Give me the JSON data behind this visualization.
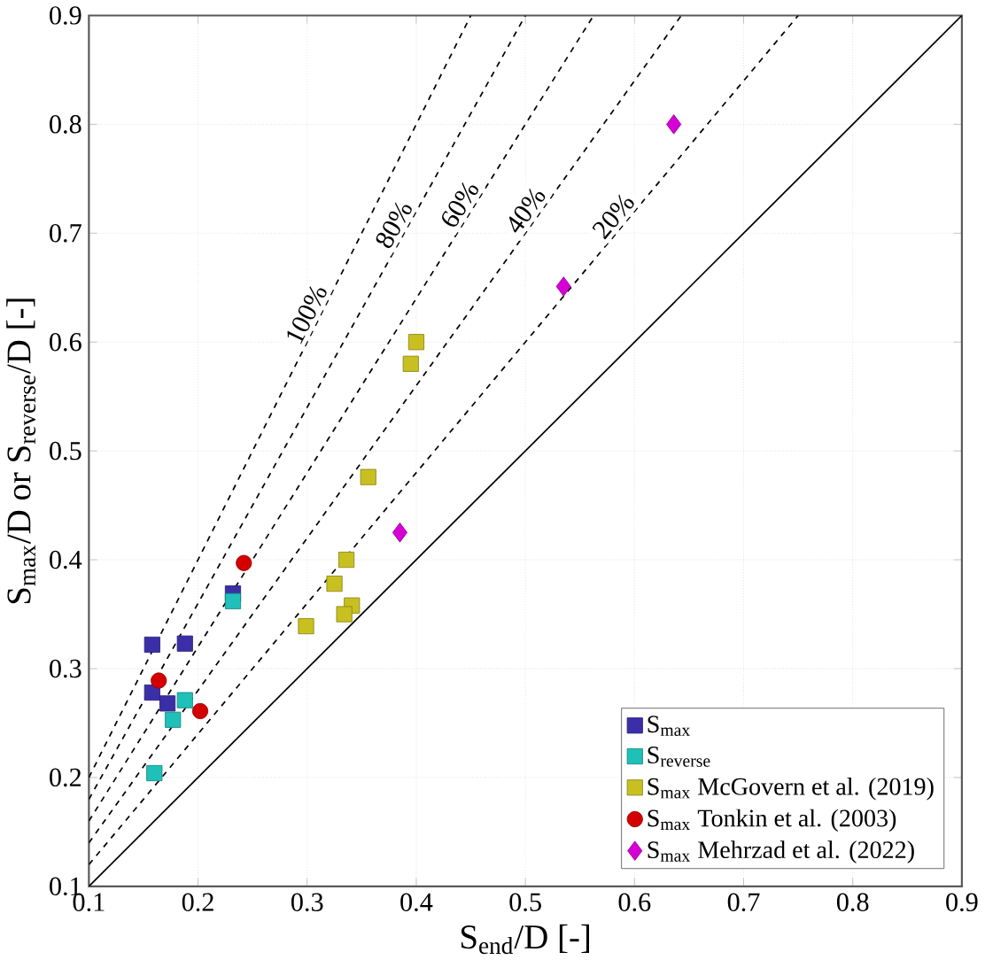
{
  "chart_data": {
    "type": "scatter",
    "xlabel": "S$_{end}$/D [-]",
    "ylabel": "S$_{max}$/D or S$_{reverse}$/D [-]",
    "xlim": [
      0.1,
      0.9
    ],
    "ylim": [
      0.1,
      0.9
    ],
    "xticks": [
      0.1,
      0.2,
      0.3,
      0.4,
      0.5,
      0.6,
      0.7,
      0.8,
      0.9
    ],
    "yticks": [
      0.1,
      0.2,
      0.3,
      0.4,
      0.5,
      0.6,
      0.7,
      0.8,
      0.9
    ],
    "grid": true,
    "legend": "bottom right",
    "series": [
      {
        "type": "line",
        "color": "#000000",
        "line_style": "dashed",
        "marker": "none",
        "x": [
          0.1,
          0.45
        ],
        "values": [
          0.2,
          0.9
        ]
      },
      {
        "type": "line",
        "color": "#000000",
        "line_style": "dashed",
        "marker": "none",
        "x": [
          0.1,
          0.5
        ],
        "values": [
          0.18,
          0.9
        ]
      },
      {
        "type": "line",
        "color": "#000000",
        "line_style": "dashed",
        "marker": "none",
        "x": [
          0.1,
          0.5625
        ],
        "values": [
          0.16,
          0.9
        ]
      },
      {
        "type": "line",
        "color": "#000000",
        "line_style": "dashed",
        "marker": "none",
        "x": [
          0.1,
          0.6429
        ],
        "values": [
          0.14,
          0.9
        ]
      },
      {
        "type": "line",
        "color": "#000000",
        "line_style": "dashed",
        "marker": "none",
        "x": [
          0.1,
          0.75
        ],
        "values": [
          0.12,
          0.9
        ]
      },
      {
        "type": "line",
        "color": "#000000",
        "line_style": "solid",
        "marker": "none",
        "x": [
          0.1,
          0.9
        ],
        "values": [
          0.1,
          0.9
        ]
      },
      {
        "name": "S$_{max}$",
        "color": "#3b2fa8",
        "marker": "square",
        "x": [
          0.158,
          0.188,
          0.158,
          0.172,
          0.232
        ],
        "values": [
          0.322,
          0.323,
          0.278,
          0.268,
          0.369
        ]
      },
      {
        "name": "S$_{reverse}$",
        "color": "#1fc0b8",
        "marker": "square",
        "x": [
          0.16,
          0.177,
          0.188,
          0.232
        ],
        "values": [
          0.204,
          0.253,
          0.271,
          0.362
        ]
      },
      {
        "name": "S$_{max}$ McGovern et al. (2019)",
        "color": "#c8c020",
        "marker": "square",
        "x": [
          0.299,
          0.325,
          0.336,
          0.341,
          0.334,
          0.356,
          0.4,
          0.395
        ],
        "values": [
          0.339,
          0.378,
          0.4,
          0.358,
          0.35,
          0.476,
          0.6,
          0.58
        ]
      },
      {
        "name": "S$_{max}$ Tonkin et al. (2003)",
        "color": "#d40000",
        "marker": "circle",
        "x": [
          0.164,
          0.202,
          0.242
        ],
        "values": [
          0.289,
          0.261,
          0.397
        ]
      },
      {
        "name": "S$_{max}$ Mehrzad et al. (2022)",
        "color": "#d600d6",
        "marker": "diamond",
        "x": [
          0.385,
          0.535,
          0.636
        ],
        "values": [
          0.425,
          0.651,
          0.8
        ]
      }
    ],
    "annotations": [
      {
        "text": "100%",
        "x": 0.31,
        "y": 0.62
      },
      {
        "text": "80%",
        "x": 0.39,
        "y": 0.702
      },
      {
        "text": "60%",
        "x": 0.45,
        "y": 0.72
      },
      {
        "text": "40%",
        "x": 0.51,
        "y": 0.714
      },
      {
        "text": "20%",
        "x": 0.59,
        "y": 0.708
      }
    ]
  }
}
